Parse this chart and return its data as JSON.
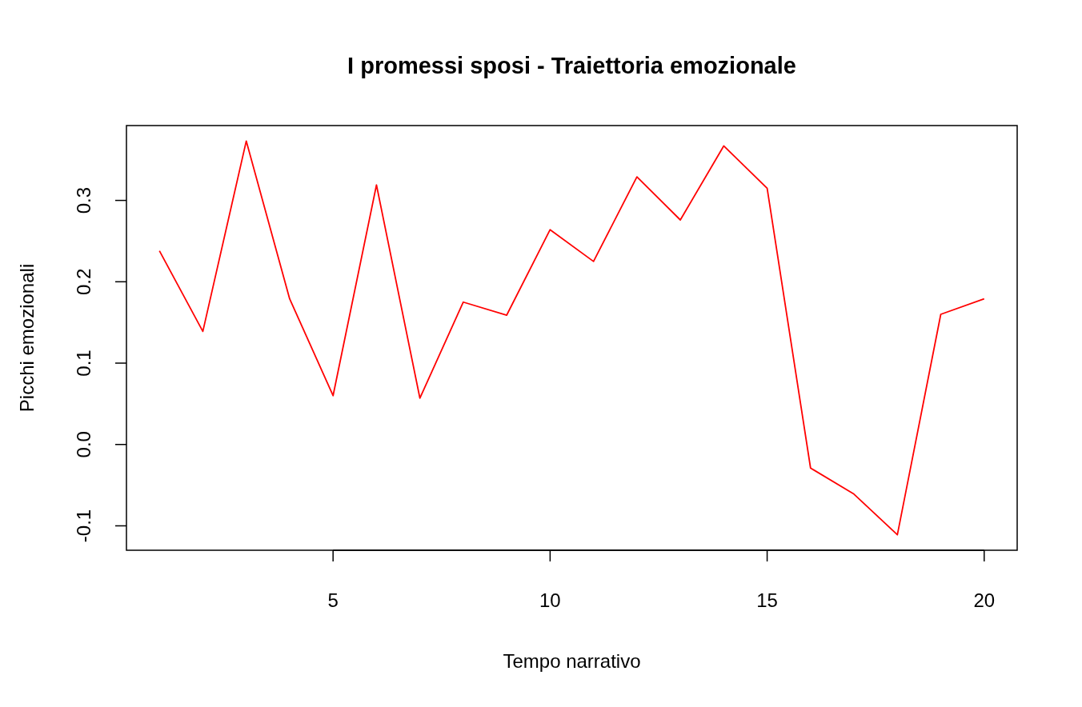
{
  "chart_data": {
    "type": "line",
    "title": "I promessi sposi - Traiettoria emozionale",
    "xlabel": "Tempo narrativo",
    "ylabel": "Picchi emozionali",
    "x": [
      1,
      2,
      3,
      4,
      5,
      6,
      7,
      8,
      9,
      10,
      11,
      12,
      13,
      14,
      15,
      16,
      17,
      18,
      19,
      20
    ],
    "series": [
      {
        "color": "#ff0000",
        "values": [
          0.238,
          0.139,
          0.373,
          0.179,
          0.06,
          0.319,
          0.057,
          0.175,
          0.159,
          0.264,
          0.225,
          0.329,
          0.276,
          0.367,
          0.315,
          -0.029,
          -0.061,
          -0.111,
          0.16,
          0.179
        ]
      }
    ],
    "xlim": [
      0.24,
      20.76
    ],
    "ylim": [
      -0.13,
      0.392
    ],
    "xticks": [
      5,
      10,
      15,
      20
    ],
    "yticks": [
      -0.1,
      {
        "value": 0,
        "label": "0.0"
      },
      0.1,
      0.2,
      0.3
    ],
    "grid": false,
    "marker": "none",
    "line_style": "solid"
  }
}
